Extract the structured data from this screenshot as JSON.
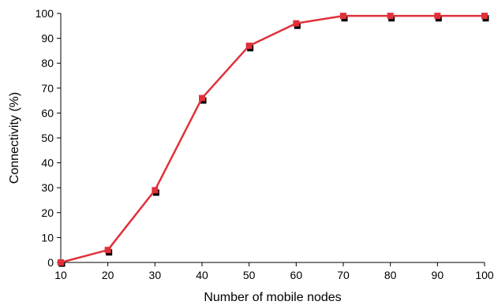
{
  "chart_data": {
    "type": "line",
    "title": "",
    "xlabel": "Number of mobile nodes",
    "ylabel": "Connectivity (%)",
    "x": [
      10,
      20,
      30,
      40,
      50,
      60,
      70,
      80,
      90,
      100
    ],
    "xlim": [
      10,
      100
    ],
    "ylim": [
      0,
      100
    ],
    "x_ticks": [
      10,
      20,
      30,
      40,
      50,
      60,
      70,
      80,
      90,
      100
    ],
    "y_ticks": [
      0,
      10,
      20,
      30,
      40,
      50,
      60,
      70,
      80,
      90,
      100
    ],
    "grid": false,
    "legend": "none",
    "series": [
      {
        "values": [
          0,
          4.5,
          28.5,
          65.5,
          86.5,
          95.5,
          98.5,
          98.5,
          98.5,
          98.5
        ],
        "color": "#000000",
        "marker": "square",
        "line": false
      },
      {
        "values": [
          0,
          5,
          29,
          66,
          87,
          96,
          99,
          99,
          99,
          99
        ],
        "color": "#e0303a",
        "marker": "square",
        "line": true
      }
    ]
  }
}
